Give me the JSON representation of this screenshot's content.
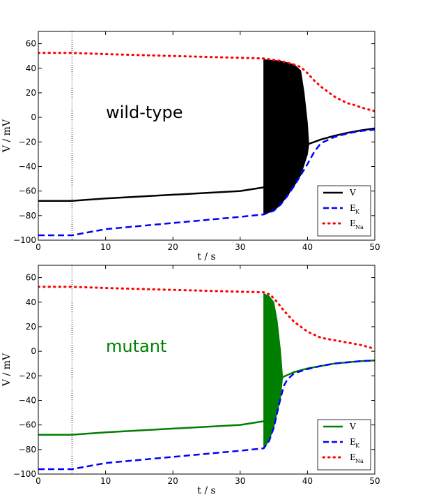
{
  "colors": {
    "wild_type": "#000000",
    "mutant": "#007f00",
    "ek": "#0000ff",
    "ena": "#ff0000",
    "marker": "#000000"
  },
  "chart_data": [
    {
      "type": "line",
      "panel_label": "wild-type",
      "xlabel": "t / s",
      "ylabel": "V / mV",
      "xlim": [
        0,
        50
      ],
      "ylim": [
        -100,
        70
      ],
      "xticks": [
        0,
        10,
        20,
        30,
        40,
        50
      ],
      "yticks": [
        -100,
        -80,
        -60,
        -40,
        -20,
        0,
        20,
        40,
        60
      ],
      "vline_x": 5,
      "legend": {
        "position": "lower-right",
        "entries": [
          {
            "label": "V",
            "sub": "",
            "style": "solid",
            "color_key": "wild_type"
          },
          {
            "label": "E",
            "sub": "K",
            "style": "dashed",
            "color_key": "ek"
          },
          {
            "label": "E",
            "sub": "Na",
            "style": "dotted",
            "color_key": "ena"
          }
        ]
      },
      "burst": {
        "start": 33.5,
        "end": 40.2
      },
      "series": [
        {
          "name": "V",
          "style": "solid",
          "color_key": "wild_type",
          "points": [
            [
              0,
              -68
            ],
            [
              5,
              -68
            ],
            [
              10,
              -66
            ],
            [
              20,
              -63
            ],
            [
              30,
              -60
            ],
            [
              33.5,
              -57
            ],
            [
              40,
              -22
            ],
            [
              42,
              -18
            ],
            [
              44,
              -15
            ],
            [
              46,
              -12.5
            ],
            [
              48,
              -10.5
            ],
            [
              50,
              -9
            ]
          ]
        },
        {
          "name": "E_K",
          "style": "dashed",
          "color_key": "ek",
          "points": [
            [
              0,
              -96
            ],
            [
              5,
              -96
            ],
            [
              10,
              -91
            ],
            [
              20,
              -86
            ],
            [
              30,
              -81
            ],
            [
              33.5,
              -79
            ],
            [
              35,
              -76
            ],
            [
              36,
              -71
            ],
            [
              37,
              -64
            ],
            [
              38,
              -56
            ],
            [
              39,
              -47
            ],
            [
              40,
              -38
            ],
            [
              41,
              -28
            ],
            [
              42,
              -21
            ],
            [
              44,
              -16
            ],
            [
              46,
              -13
            ],
            [
              48,
              -11
            ],
            [
              50,
              -10
            ]
          ]
        },
        {
          "name": "E_Na",
          "style": "dotted",
          "color_key": "ena",
          "points": [
            [
              0,
              52.5
            ],
            [
              5,
              52.5
            ],
            [
              10,
              51.5
            ],
            [
              20,
              50
            ],
            [
              30,
              48.5
            ],
            [
              33.5,
              48
            ],
            [
              36,
              46
            ],
            [
              38,
              43
            ],
            [
              39,
              41
            ],
            [
              40,
              36
            ],
            [
              41,
              30
            ],
            [
              42,
              25
            ],
            [
              43,
              21
            ],
            [
              44,
              17
            ],
            [
              45,
              14
            ],
            [
              46,
              11.5
            ],
            [
              47,
              10
            ],
            [
              48,
              8
            ],
            [
              50,
              5
            ]
          ]
        },
        {
          "name": "V-max",
          "style": "fill-top",
          "color_key": "wild_type",
          "points": [
            [
              33.5,
              47
            ],
            [
              36,
              46
            ],
            [
              38,
              43
            ],
            [
              39,
              38
            ],
            [
              39.5,
              20
            ],
            [
              40,
              -5
            ],
            [
              40.2,
              -22
            ]
          ]
        },
        {
          "name": "V-min",
          "style": "fill-bottom",
          "color_key": "wild_type",
          "points": [
            [
              33.5,
              -79
            ],
            [
              35,
              -76
            ],
            [
              36,
              -71
            ],
            [
              37,
              -64
            ],
            [
              38,
              -56
            ],
            [
              39,
              -47
            ],
            [
              40,
              -30
            ],
            [
              40.2,
              -22
            ]
          ]
        }
      ]
    },
    {
      "type": "line",
      "panel_label": "mutant",
      "xlabel": "t / s",
      "ylabel": "V / mV",
      "xlim": [
        0,
        50
      ],
      "ylim": [
        -100,
        70
      ],
      "xticks": [
        0,
        10,
        20,
        30,
        40,
        50
      ],
      "yticks": [
        -100,
        -80,
        -60,
        -40,
        -20,
        0,
        20,
        40,
        60
      ],
      "vline_x": 5,
      "legend": {
        "position": "lower-right",
        "entries": [
          {
            "label": "V",
            "sub": "",
            "style": "solid",
            "color_key": "mutant"
          },
          {
            "label": "E",
            "sub": "K",
            "style": "dashed",
            "color_key": "ek"
          },
          {
            "label": "E",
            "sub": "Na",
            "style": "dotted",
            "color_key": "ena"
          }
        ]
      },
      "burst": {
        "start": 33.5,
        "end": 36.3
      },
      "series": [
        {
          "name": "V",
          "style": "solid",
          "color_key": "mutant",
          "points": [
            [
              0,
              -68
            ],
            [
              5,
              -68
            ],
            [
              10,
              -66
            ],
            [
              20,
              -63
            ],
            [
              30,
              -60
            ],
            [
              33.5,
              -57
            ],
            [
              36.3,
              -21
            ],
            [
              38,
              -17
            ],
            [
              40,
              -14
            ],
            [
              42,
              -12
            ],
            [
              44,
              -10
            ],
            [
              46,
              -9
            ],
            [
              48,
              -8
            ],
            [
              50,
              -7.5
            ]
          ]
        },
        {
          "name": "E_K",
          "style": "dashed",
          "color_key": "ek",
          "points": [
            [
              0,
              -96
            ],
            [
              5,
              -96
            ],
            [
              10,
              -91
            ],
            [
              20,
              -86
            ],
            [
              30,
              -81
            ],
            [
              33.5,
              -79
            ],
            [
              34.3,
              -73
            ],
            [
              35,
              -62
            ],
            [
              35.5,
              -50
            ],
            [
              36,
              -38
            ],
            [
              36.5,
              -28
            ],
            [
              37,
              -23
            ],
            [
              38,
              -18
            ],
            [
              40,
              -14.5
            ],
            [
              42,
              -12
            ],
            [
              44,
              -10
            ],
            [
              46,
              -9
            ],
            [
              48,
              -8
            ],
            [
              50,
              -7.5
            ]
          ]
        },
        {
          "name": "E_Na",
          "style": "dotted",
          "color_key": "ena",
          "points": [
            [
              0,
              52.5
            ],
            [
              5,
              52.5
            ],
            [
              10,
              51.5
            ],
            [
              20,
              50
            ],
            [
              30,
              48.5
            ],
            [
              33.5,
              48
            ],
            [
              34.5,
              46
            ],
            [
              35.5,
              40
            ],
            [
              36.5,
              33
            ],
            [
              38,
              24
            ],
            [
              40,
              16
            ],
            [
              42,
              11
            ],
            [
              44,
              9
            ],
            [
              46,
              7
            ],
            [
              48,
              5
            ],
            [
              50,
              2
            ]
          ]
        },
        {
          "name": "V-max",
          "style": "fill-top",
          "color_key": "mutant",
          "points": [
            [
              33.5,
              47
            ],
            [
              34.3,
              45
            ],
            [
              35,
              40
            ],
            [
              35.5,
              25
            ],
            [
              36,
              0
            ],
            [
              36.3,
              -21
            ]
          ]
        },
        {
          "name": "V-min",
          "style": "fill-bottom",
          "color_key": "mutant",
          "points": [
            [
              33.5,
              -79
            ],
            [
              34.3,
              -73
            ],
            [
              35,
              -62
            ],
            [
              35.5,
              -50
            ],
            [
              36,
              -38
            ],
            [
              36.3,
              -21
            ]
          ]
        }
      ]
    }
  ]
}
